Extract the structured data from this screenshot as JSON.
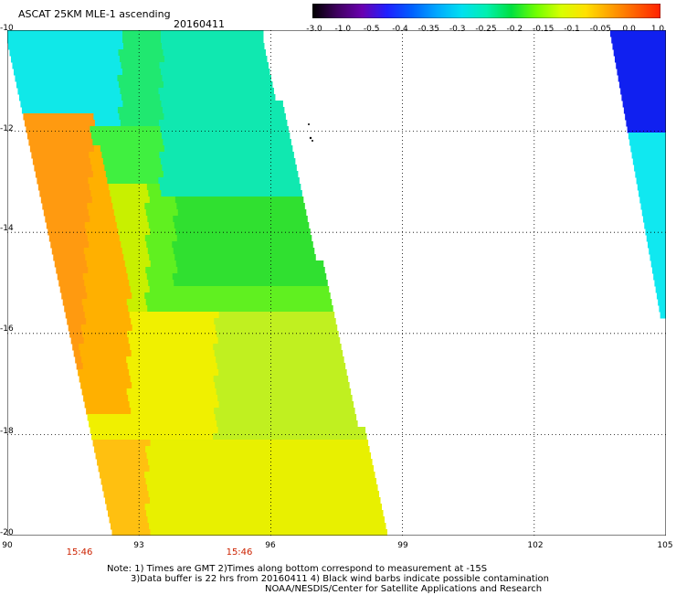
{
  "header": {
    "title": "ASCAT 25KM MLE-1 ascending",
    "date": "20160411"
  },
  "legend": {
    "colors": [
      "#000000",
      "#400060",
      "#6a00b0",
      "#2020ff",
      "#0060ff",
      "#00a8ff",
      "#00e0f0",
      "#00f0b0",
      "#00e040",
      "#70ff00",
      "#d8ff00",
      "#ffe000",
      "#ffa000",
      "#ff6000",
      "#ff2000"
    ],
    "labels": [
      "-3.0",
      "-1.0",
      "-0.5",
      "-0.4",
      "-0.35",
      "-0.3",
      "-0.25",
      "-0.2",
      "-0.15",
      "-0.1",
      "-0.05",
      "0.0",
      "1.0"
    ]
  },
  "axes": {
    "lat_labels": [
      "-10",
      "-12",
      "-14",
      "-16",
      "-18",
      "-20"
    ],
    "lon_labels": [
      "90",
      "93",
      "96",
      "99",
      "102",
      "105"
    ]
  },
  "times": [
    "15:46",
    "15:46"
  ],
  "notes": {
    "line1": "Note: 1) Times are GMT 2)Times along bottom correspond to measurement at -15S",
    "line2": "3)Data buffer is 22 hrs from 20160411 4) Black wind barbs indicate possible contamination",
    "line3": "NOAA/NESDIS/Center for Satellite Applications and Research"
  }
}
